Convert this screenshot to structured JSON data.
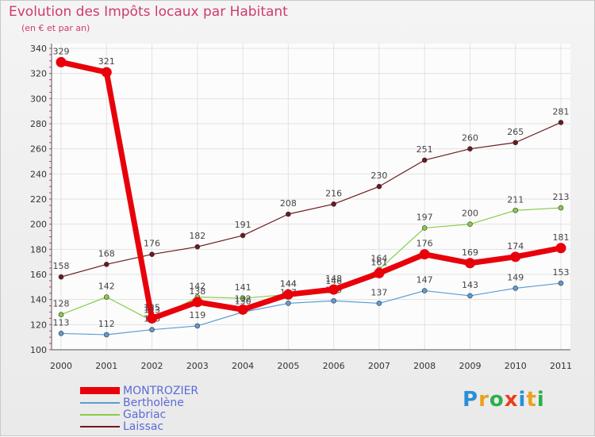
{
  "chart_data": {
    "type": "line",
    "title": "Evolution des Impôts locaux par Habitant",
    "subtitle": "(en € et par an)",
    "categories": [
      "2000",
      "2001",
      "2002",
      "2003",
      "2004",
      "2005",
      "2006",
      "2007",
      "2008",
      "2009",
      "2010",
      "2011"
    ],
    "ylim": [
      100,
      340
    ],
    "yticks": [
      100,
      120,
      140,
      160,
      180,
      200,
      220,
      240,
      260,
      280,
      300,
      320,
      340
    ],
    "series": [
      {
        "name": "Laissac",
        "color": "#6b1a1f",
        "values": [
          158,
          168,
          176,
          182,
          191,
          208,
          216,
          230,
          251,
          260,
          265,
          281
        ]
      },
      {
        "name": "Gabriac",
        "color": "#88cc44",
        "values": [
          128,
          142,
          123,
          142,
          141,
          144,
          146,
          164,
          197,
          200,
          211,
          213
        ]
      },
      {
        "name": "Bertholène",
        "color": "#5b9bd5",
        "values": [
          113,
          112,
          116,
          119,
          130,
          137,
          139,
          137,
          147,
          143,
          149,
          153
        ]
      },
      {
        "name": "MONTROZIER",
        "color": "#e8000b",
        "values": [
          329,
          321,
          125,
          138,
          132,
          144,
          148,
          161,
          176,
          169,
          174,
          181
        ]
      }
    ],
    "legend_order": [
      "MONTROZIER",
      "Bertholène",
      "Gabriac",
      "Laissac"
    ]
  },
  "branding": {
    "logo_text": "Proxiti",
    "logo_letters": [
      {
        "ch": "P",
        "color": "#2b8fd6"
      },
      {
        "ch": "r",
        "color": "#e8a21c"
      },
      {
        "ch": "o",
        "color": "#2bb04a"
      },
      {
        "ch": "x",
        "color": "#e8401c"
      },
      {
        "ch": "i",
        "color": "#2b8fd6"
      },
      {
        "ch": "t",
        "color": "#e8a21c"
      },
      {
        "ch": "i",
        "color": "#2bb04a"
      }
    ]
  }
}
